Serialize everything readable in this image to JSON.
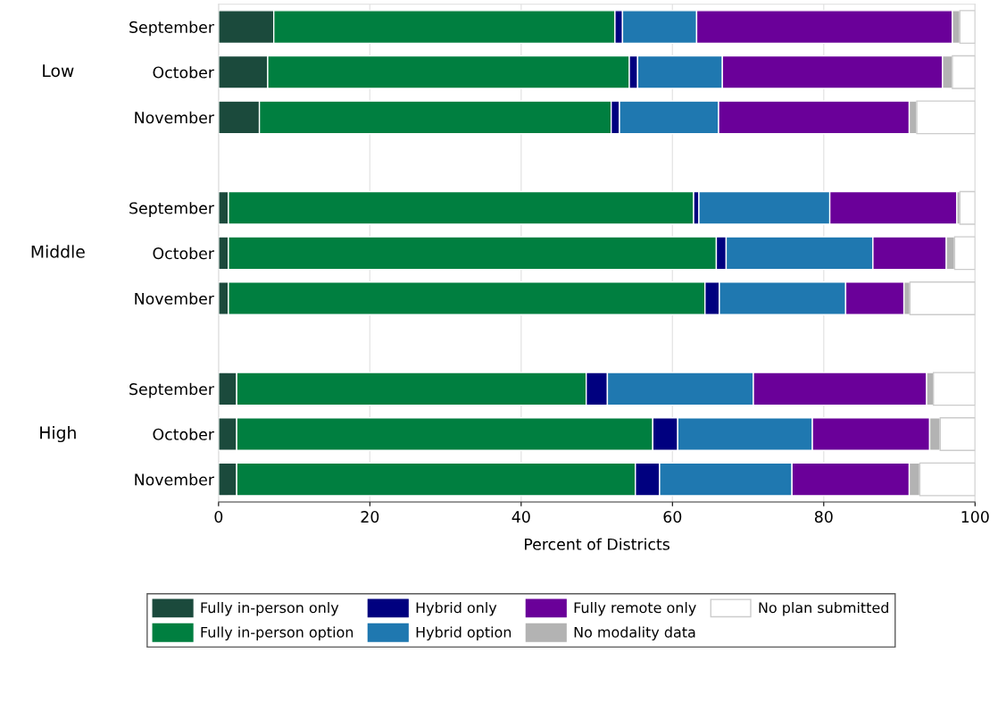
{
  "chart_data": {
    "type": "bar",
    "orientation": "horizontal",
    "stacked": true,
    "xlabel": "Percent of Districts",
    "categories": [
      "September",
      "October",
      "November",
      null,
      "September",
      "October",
      "November",
      null,
      "September",
      "October",
      "November"
    ],
    "annotations": [
      "Low",
      "Middle",
      "High"
    ],
    "series": [
      {
        "name": "Fully in-person only",
        "color": "#1b4a3c",
        "values": [
          7.3,
          6.5,
          5.4,
          null,
          1.3,
          1.3,
          1.3,
          null,
          2.4,
          2.4,
          2.4
        ]
      },
      {
        "name": "Fully in-person option",
        "color": "#007f40",
        "values": [
          45.1,
          47.8,
          46.5,
          null,
          61.5,
          64.5,
          63.0,
          null,
          46.2,
          55.0,
          52.7
        ]
      },
      {
        "name": "Hybrid only",
        "color": "#00007f",
        "values": [
          1.0,
          1.1,
          1.1,
          null,
          0.7,
          1.3,
          1.9,
          null,
          2.8,
          3.3,
          3.2
        ]
      },
      {
        "name": "Hybrid option",
        "color": "#1f78b0",
        "values": [
          9.8,
          11.2,
          13.1,
          null,
          17.3,
          19.4,
          16.7,
          null,
          19.3,
          17.8,
          17.5
        ]
      },
      {
        "name": "Fully remote only",
        "color": "#6a0099",
        "values": [
          33.8,
          29.1,
          25.2,
          null,
          16.8,
          9.7,
          7.7,
          null,
          22.9,
          15.5,
          15.5
        ]
      },
      {
        "name": "No modality data",
        "color": "#b3b3b3",
        "values": [
          1.0,
          1.3,
          1.0,
          null,
          0.4,
          1.1,
          0.8,
          null,
          0.9,
          1.4,
          1.4
        ]
      },
      {
        "name": "No plan submitted",
        "color": "#ffffff",
        "values": [
          2.0,
          3.0,
          7.7,
          null,
          2.0,
          2.7,
          8.6,
          null,
          5.5,
          4.6,
          7.3
        ]
      }
    ],
    "xlim": [
      0,
      100
    ],
    "xticks": [
      0,
      20,
      40,
      60,
      80,
      100
    ],
    "grid": "x",
    "legend": "bottom"
  }
}
